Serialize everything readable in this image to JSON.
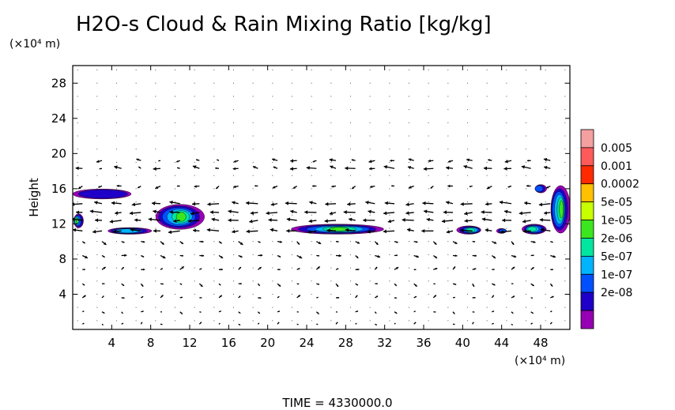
{
  "chart_data": {
    "type": "contour+vector",
    "title": "H2O-s Cloud & Rain Mixing Ratio [kg/kg]",
    "y_unit_label": "(×10⁴ m)",
    "x_unit_label": "(×10⁴ m)",
    "ylabel": "Height",
    "xlabel": "",
    "footer": "TIME = 4330000.0",
    "xlim": [
      0,
      51
    ],
    "ylim": [
      0,
      30
    ],
    "x_ticks": [
      4,
      8,
      12,
      16,
      20,
      24,
      28,
      32,
      36,
      40,
      44,
      48
    ],
    "y_ticks": [
      4,
      8,
      12,
      16,
      20,
      24,
      28
    ],
    "colorbar": {
      "labels": [
        "0.005",
        "0.001",
        "0.0002",
        "5e-05",
        "1e-05",
        "2e-06",
        "5e-07",
        "1e-07",
        "2e-08"
      ],
      "colors": [
        "#f4a0a0",
        "#ff5a5a",
        "#ff2a00",
        "#ffc000",
        "#c8ff00",
        "#3ce61e",
        "#00e6a0",
        "#00b4ff",
        "#0050ff",
        "#1e00c8",
        "#9600b4"
      ]
    },
    "cloud_regions": [
      {
        "x": [
          0.0,
          6.0
        ],
        "y": [
          14.8,
          16.0
        ],
        "level": "2e-08"
      },
      {
        "x": [
          0.0,
          1.0
        ],
        "y": [
          11.5,
          13.2
        ],
        "level": "1e-05"
      },
      {
        "x": [
          3.5,
          8.0
        ],
        "y": [
          10.8,
          11.6
        ],
        "level": "5e-07"
      },
      {
        "x": [
          8.5,
          13.5
        ],
        "y": [
          11.3,
          14.3
        ],
        "level": "0.0002"
      },
      {
        "x": [
          22.5,
          32.0
        ],
        "y": [
          10.8,
          12.0
        ],
        "level": "5e-05"
      },
      {
        "x": [
          39.5,
          42.0
        ],
        "y": [
          10.8,
          11.8
        ],
        "level": "2e-06"
      },
      {
        "x": [
          43.5,
          44.5
        ],
        "y": [
          10.9,
          11.5
        ],
        "level": "1e-07"
      },
      {
        "x": [
          46.0,
          48.5
        ],
        "y": [
          10.8,
          12.0
        ],
        "level": "2e-06"
      },
      {
        "x": [
          47.3,
          48.5
        ],
        "y": [
          15.5,
          16.5
        ],
        "level": "1e-07"
      },
      {
        "x": [
          49.0,
          51.0
        ],
        "y": [
          10.8,
          16.5
        ],
        "level": "5e-05"
      }
    ],
    "wind_field_description": "",
    "grid": false
  }
}
